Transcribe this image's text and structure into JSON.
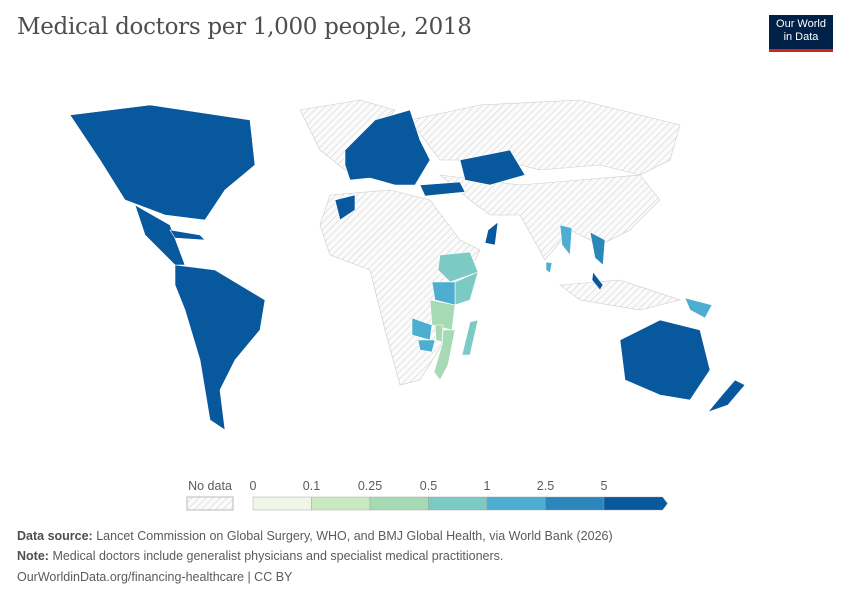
{
  "title": "Medical doctors per 1,000 people, 2018",
  "logo": {
    "line1": "Our World",
    "line2": "in Data"
  },
  "legend": {
    "no_data_label": "No data",
    "ticks": [
      "0",
      "0.1",
      "0.25",
      "0.5",
      "1",
      "2.5",
      "5"
    ],
    "colors": [
      "#eef7e6",
      "#cbe9c1",
      "#a5dab4",
      "#7ccac4",
      "#4daed2",
      "#2a86bb",
      "#08589e"
    ]
  },
  "map_data": {
    "bins": {
      "north-america": 6,
      "central-america": 6,
      "caribbean": 6,
      "south-america": 6,
      "europe": 6,
      "kazakhstan": 6,
      "turkey": 6,
      "oman": 6,
      "morocco": 6,
      "australia": 6,
      "new-zealand": 6,
      "malaysia": 6,
      "vietnam": 5,
      "myanmar": 4,
      "sri-lanka": 4,
      "papua-new-guinea": 4,
      "ethiopia": 3,
      "somalia": 3,
      "kenya": 4,
      "tanzania": 2,
      "malawi": 2,
      "mozambique": 2,
      "zambia": 4,
      "zimbabwe": 4,
      "madagascar": 3
    },
    "no_data_pattern": "hatched"
  },
  "footer": {
    "source_label": "Data source:",
    "source": "Lancet Commission on Global Surgery, WHO, and BMJ Global Health, via World Bank (2026)",
    "note_label": "Note:",
    "note": "Medical doctors include generalist physicians and specialist medical practitioners.",
    "url": "OurWorldinData.org/financing-healthcare | CC BY"
  }
}
